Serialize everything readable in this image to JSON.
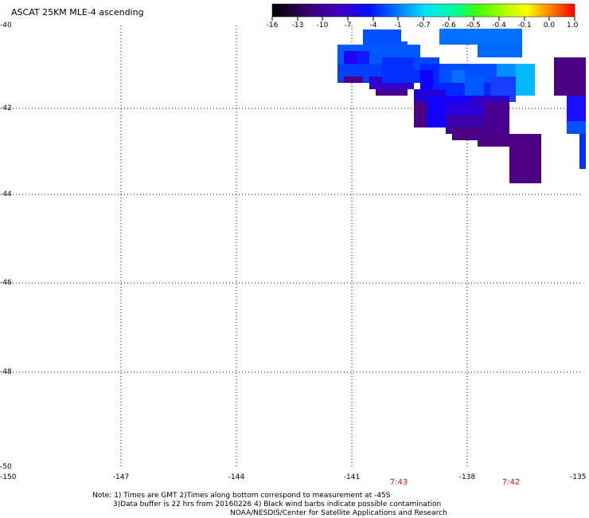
{
  "title": "ASCAT 25KM MLE-4 ascending",
  "colorbar": {
    "labels": [
      "-16",
      "-13",
      "-10",
      "-7",
      "-4",
      "-1",
      "-0.7",
      "-0.6",
      "-0.5",
      "-0.4",
      "-0.1",
      "0.0",
      "1.0"
    ]
  },
  "lat_labels": [
    "-40",
    "-42",
    "-44",
    "-46",
    "-48",
    "-50"
  ],
  "lon_labels": [
    "-150",
    "-147",
    "-144",
    "-141",
    "-138",
    "-135"
  ],
  "times": [
    "7:43",
    "7:42"
  ],
  "notes": {
    "line1": "Note: 1) Times are GMT 2)Times along bottom correspond to measurement at -45S",
    "line2": "3)Data buffer is 22 hrs from 20160226 4) Black wind barbs indicate possible contamination",
    "line3": "NOAA/NESDIS/Center for Satellite Applications and Research"
  },
  "colors": {
    "dark_purple": "#4b0082",
    "deep_blue": "#2a00ff",
    "blue": "#0033ff",
    "mid_blue": "#0060ff",
    "light_blue": "#0090ff",
    "cyan_blue": "#00c0ff"
  }
}
